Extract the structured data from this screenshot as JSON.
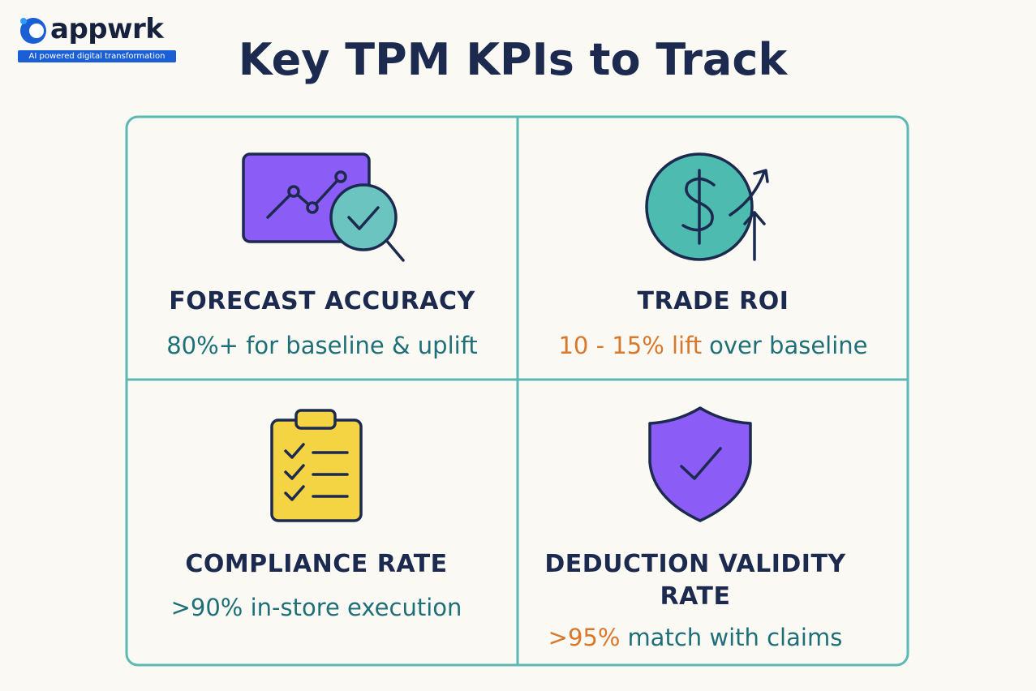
{
  "logo": {
    "name": "appwrk",
    "tagline": "AI powered digital transformation"
  },
  "title": "Key TPM KPIs to Track",
  "cards": [
    {
      "label": "FORECAST ACCURACY",
      "description": [
        {
          "text": "80%+ for baseline & uplift",
          "color": "#1f6f78"
        }
      ]
    },
    {
      "label": "TRADE ROI",
      "description": [
        {
          "text": "10 - 15% lift",
          "color": "#d9782a"
        },
        {
          "text": "over baseline",
          "color": "#1f6f78"
        }
      ]
    },
    {
      "label": "COMPLIANCE RATE",
      "description": [
        {
          "text": ">90% in-store execution",
          "color": "#1f6f78"
        }
      ]
    },
    {
      "label": "DEDUCTION VALIDITY RATE",
      "description": [
        {
          "text": ">95%",
          "color": "#d9782a"
        },
        {
          "text": "match with claims",
          "color": "#1f6f78"
        }
      ]
    }
  ]
}
